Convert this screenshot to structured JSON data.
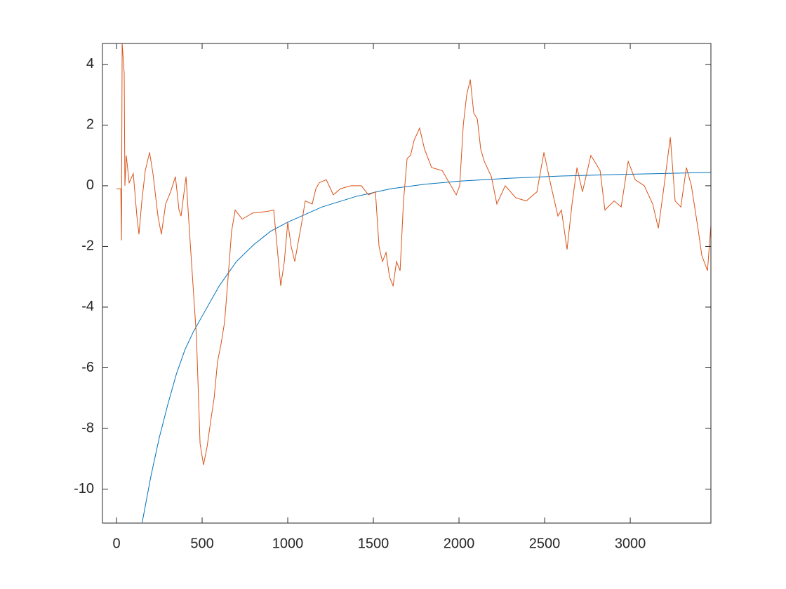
{
  "chart_data": {
    "type": "line",
    "xlim": [
      -82,
      3471
    ],
    "ylim": [
      -11.12,
      4.69
    ],
    "xticks": [
      0,
      500,
      1000,
      1500,
      2000,
      2500,
      3000
    ],
    "yticks": [
      -10,
      -8,
      -6,
      -4,
      -2,
      0,
      2,
      4
    ],
    "grid": false,
    "series": [
      {
        "color": "#0072bd",
        "x": [
          150,
          200,
          250,
          300,
          350,
          400,
          450,
          500,
          600,
          700,
          800,
          900,
          1000,
          1200,
          1400,
          1600,
          1800,
          2000,
          2300,
          2600,
          3000,
          3471
        ],
        "values": [
          -11.1,
          -9.6,
          -8.3,
          -7.2,
          -6.2,
          -5.4,
          -4.8,
          -4.3,
          -3.3,
          -2.5,
          -1.95,
          -1.5,
          -1.2,
          -0.7,
          -0.35,
          -0.1,
          0.05,
          0.15,
          0.25,
          0.32,
          0.38,
          0.44
        ]
      },
      {
        "color": "#d95319",
        "x": [
          0,
          25,
          29,
          33,
          45,
          49,
          57,
          74,
          98,
          119,
          131,
          148,
          168,
          193,
          213,
          242,
          262,
          287,
          316,
          344,
          365,
          377,
          406,
          426,
          467,
          488,
          508,
          529,
          549,
          570,
          590,
          611,
          631,
          652,
          672,
          693,
          734,
          795,
          877,
          918,
          959,
          980,
          1000,
          1020,
          1041,
          1082,
          1102,
          1143,
          1164,
          1184,
          1225,
          1266,
          1307,
          1369,
          1430,
          1471,
          1512,
          1533,
          1553,
          1574,
          1594,
          1615,
          1635,
          1656,
          1676,
          1697,
          1717,
          1738,
          1770,
          1799,
          1840,
          1902,
          1943,
          1984,
          2004,
          2025,
          2045,
          2066,
          2086,
          2107,
          2127,
          2148,
          2189,
          2221,
          2270,
          2332,
          2393,
          2455,
          2496,
          2537,
          2578,
          2598,
          2631,
          2660,
          2689,
          2721,
          2770,
          2824,
          2852,
          2906,
          2947,
          2988,
          3029,
          3082,
          3131,
          3164,
          3193,
          3234,
          3262,
          3295,
          3328,
          3357,
          3398,
          3418,
          3451,
          3471
        ],
        "values": [
          -0.1,
          -0.1,
          -1.8,
          4.7,
          3.7,
          0.0,
          1.0,
          0.1,
          0.4,
          -1.0,
          -1.6,
          -0.5,
          0.5,
          1.1,
          0.4,
          -1.0,
          -1.6,
          -0.6,
          -0.2,
          0.3,
          -0.8,
          -1.0,
          0.3,
          -1.5,
          -5.0,
          -8.5,
          -9.2,
          -8.6,
          -7.8,
          -7.0,
          -5.8,
          -5.2,
          -4.5,
          -3.0,
          -1.5,
          -0.8,
          -1.1,
          -0.9,
          -0.85,
          -0.8,
          -3.3,
          -2.5,
          -1.2,
          -2.0,
          -2.5,
          -1.2,
          -0.5,
          -0.6,
          -0.1,
          0.1,
          0.2,
          -0.3,
          -0.1,
          0.0,
          0.0,
          -0.3,
          -0.2,
          -2.0,
          -2.5,
          -2.2,
          -3.0,
          -3.3,
          -2.5,
          -2.8,
          -0.5,
          0.9,
          1.0,
          1.5,
          1.9,
          1.2,
          0.6,
          0.5,
          0.1,
          -0.3,
          0.0,
          2.0,
          3.0,
          3.5,
          2.4,
          2.2,
          1.2,
          0.8,
          0.3,
          -0.6,
          0.0,
          -0.4,
          -0.5,
          -0.2,
          1.1,
          0.0,
          -1.0,
          -0.8,
          -2.1,
          -0.6,
          0.6,
          -0.2,
          1.0,
          0.5,
          -0.8,
          -0.5,
          -0.7,
          0.8,
          0.2,
          0.0,
          -0.6,
          -1.4,
          -0.2,
          1.6,
          -0.5,
          -0.7,
          0.6,
          0.0,
          -1.5,
          -2.3,
          -2.8,
          -1.3
        ]
      }
    ]
  }
}
